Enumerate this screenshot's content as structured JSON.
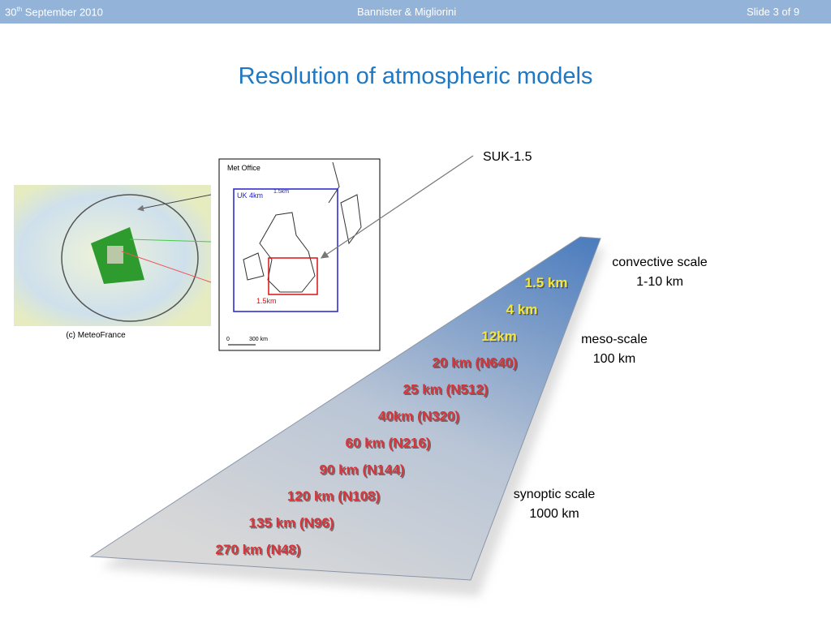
{
  "header": {
    "date": {
      "day": "30",
      "suffix": "th",
      "rest": " September 2010"
    },
    "authors": "Bannister & Migliorini",
    "slide": "Slide 3 of 9"
  },
  "title": "Resolution of atmospheric models",
  "globe": {
    "caption": "(c) MeteoFrance"
  },
  "map": {
    "source": "Met Office",
    "outer_label": "UK 4km",
    "inner_top_label": "1.5km",
    "inner_label": "1.5km",
    "scale_start": "0",
    "scale_end": "300 km"
  },
  "callout": "SUK-1.5",
  "scales": [
    {
      "name": "convective scale",
      "range": "1-10 km"
    },
    {
      "name": "meso-scale",
      "range": "100 km"
    },
    {
      "name": "synoptic scale",
      "range": "1000 km"
    }
  ],
  "resolutions": [
    {
      "label": "1.5 km",
      "color": "#f5e63a"
    },
    {
      "label": "4 km",
      "color": "#f5e63a"
    },
    {
      "label": "12km",
      "color": "#f5e63a"
    },
    {
      "label": "20 km (N640)",
      "color": "#d9343a"
    },
    {
      "label": "25 km (N512)",
      "color": "#d9343a"
    },
    {
      "label": "40km (N320)",
      "color": "#d9343a"
    },
    {
      "label": "60 km (N216)",
      "color": "#d9343a"
    },
    {
      "label": "90 km (N144)",
      "color": "#d9343a"
    },
    {
      "label": "120 km (N108)",
      "color": "#d9343a"
    },
    {
      "label": "135 km (N96)",
      "color": "#d9343a"
    },
    {
      "label": "270 km (N48)",
      "color": "#d9343a"
    }
  ]
}
